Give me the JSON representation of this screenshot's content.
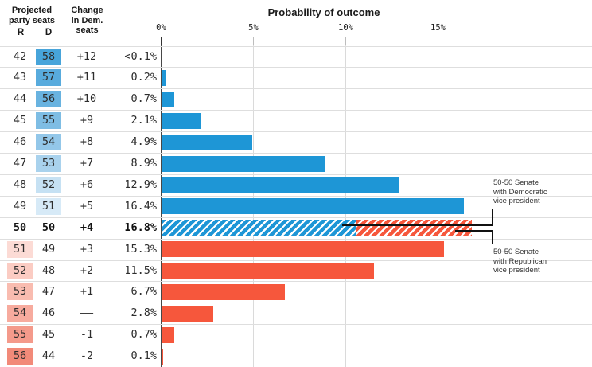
{
  "colors": {
    "dem_bar": "#1e96d6",
    "rep_bar": "#f6573c",
    "zero_axis": "#474747",
    "gridline": "#dadada",
    "annotation_line": "#111111"
  },
  "table": {
    "projected_header": "Projected\nparty seats",
    "r_label": "R",
    "d_label": "D",
    "change_header": "Change\nin Dem.\nseats"
  },
  "chart_data": {
    "type": "bar",
    "title": "Probability of outcome",
    "xlabel": "",
    "ylabel": "",
    "x_ticks": [
      "0%",
      "5%",
      "10%",
      "15%"
    ],
    "x_tick_values": [
      0,
      5,
      10,
      15
    ],
    "xlim": [
      0,
      23.4
    ],
    "grid": true,
    "rows": [
      {
        "r": "42",
        "d": "58",
        "change": "+12",
        "prob_label": "<0.1%",
        "prob": 0.06,
        "party": "dem",
        "d_bg": "#47a4da"
      },
      {
        "r": "43",
        "d": "57",
        "change": "+11",
        "prob_label": "0.2%",
        "prob": 0.2,
        "party": "dem",
        "d_bg": "#58abdd"
      },
      {
        "r": "44",
        "d": "56",
        "change": "+10",
        "prob_label": "0.7%",
        "prob": 0.7,
        "party": "dem",
        "d_bg": "#69b3e0"
      },
      {
        "r": "45",
        "d": "55",
        "change": "+9",
        "prob_label": "2.1%",
        "prob": 2.1,
        "party": "dem",
        "d_bg": "#7ebde4"
      },
      {
        "r": "46",
        "d": "54",
        "change": "+8",
        "prob_label": "4.9%",
        "prob": 4.9,
        "party": "dem",
        "d_bg": "#93c7e9"
      },
      {
        "r": "47",
        "d": "53",
        "change": "+7",
        "prob_label": "8.9%",
        "prob": 8.9,
        "party": "dem",
        "d_bg": "#a9d2ed"
      },
      {
        "r": "48",
        "d": "52",
        "change": "+6",
        "prob_label": "12.9%",
        "prob": 12.9,
        "party": "dem",
        "d_bg": "#c6e1f3"
      },
      {
        "r": "49",
        "d": "51",
        "change": "+5",
        "prob_label": "16.4%",
        "prob": 16.4,
        "party": "dem",
        "d_bg": "#d7eaf7"
      },
      {
        "r": "50",
        "d": "50",
        "change": "+4",
        "prob_label": "16.8%",
        "prob": 16.8,
        "party": "split",
        "bold": true,
        "split": {
          "dem": 10.55,
          "rep": 6.25
        }
      },
      {
        "r": "51",
        "d": "49",
        "change": "+3",
        "prob_label": "15.3%",
        "prob": 15.3,
        "party": "rep",
        "r_bg": "#fcdbd5"
      },
      {
        "r": "52",
        "d": "48",
        "change": "+2",
        "prob_label": "11.5%",
        "prob": 11.5,
        "party": "rep",
        "r_bg": "#fbccc3"
      },
      {
        "r": "53",
        "d": "47",
        "change": "+1",
        "prob_label": "6.7%",
        "prob": 6.7,
        "party": "rep",
        "r_bg": "#f9bcb0"
      },
      {
        "r": "54",
        "d": "46",
        "change": "——",
        "prob_label": "2.8%",
        "prob": 2.8,
        "party": "rep",
        "r_bg": "#f7ab9e"
      },
      {
        "r": "55",
        "d": "45",
        "change": "-1",
        "prob_label": "0.7%",
        "prob": 0.7,
        "party": "rep",
        "r_bg": "#f49a8b"
      },
      {
        "r": "56",
        "d": "44",
        "change": "-2",
        "prob_label": "0.1%",
        "prob": 0.1,
        "party": "rep",
        "r_bg": "#f28a79"
      }
    ],
    "annotations": [
      {
        "text": "50-50 Senate\nwith Democratic\nvice president"
      },
      {
        "text": "50-50 Senate\nwith Republican\nvice president"
      }
    ],
    "legend_position": "none"
  }
}
